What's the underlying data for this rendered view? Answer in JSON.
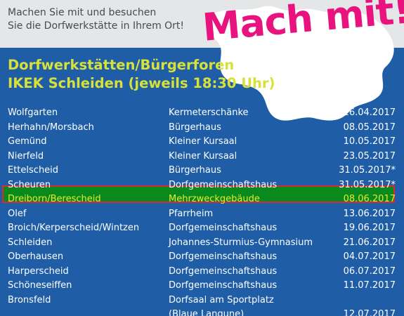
{
  "intro": {
    "line1": "Machen Sie mit und besuchen",
    "line2": "Sie die Dorfwerkstätte in Ihrem Ort!"
  },
  "slogan": "Mach mit!",
  "heading": {
    "line1": "Dorfwerkstätten/Bürgerforen",
    "line2": "IKEK Schleiden (jeweils 18:30 Uhr)"
  },
  "colors": {
    "background": "#1f5ea6",
    "slogan": "#e8137e",
    "heading": "#d7e13a",
    "highlight_fill": "#0a8a1c",
    "highlight_border": "#d62a3a"
  },
  "schedule": [
    {
      "place": "Wolfgarten",
      "venue": "Kermeterschänke",
      "date": "26.04.2017"
    },
    {
      "place": "Herhahn/Morsbach",
      "venue": "Bürgerhaus",
      "date": "08.05.2017"
    },
    {
      "place": "Gemünd",
      "venue": "Kleiner Kursaal",
      "date": "10.05.2017"
    },
    {
      "place": "Nierfeld",
      "venue": "Kleiner Kursaal",
      "date": "23.05.2017"
    },
    {
      "place": "Ettelscheid",
      "venue": "Bürgerhaus",
      "date": "31.05.2017*"
    },
    {
      "place": "Scheuren",
      "venue": "Dorfgemeinschaftshaus",
      "date": "31.05.2017*"
    },
    {
      "place": "Dreiborn/Berescheid",
      "venue": "Mehrzweckgebäude",
      "date": "08.06.2017"
    },
    {
      "place": "Olef",
      "venue": "Pfarrheim",
      "date": "13.06.2017"
    },
    {
      "place": "Broich/Kerperscheid/Wintzen",
      "venue": "Dorfgemeinschaftshaus",
      "date": "19.06.2017"
    },
    {
      "place": "Schleiden",
      "venue": "Johannes-Sturmius-Gymnasium",
      "date": "21.06.2017"
    },
    {
      "place": "Oberhausen",
      "venue": "Dorfgemeinschaftshaus",
      "date": "04.07.2017"
    },
    {
      "place": "Harperscheid",
      "venue": "Dorfgemeinschaftshaus",
      "date": "06.07.2017"
    },
    {
      "place": "Schöneseiffen",
      "venue": "Dorfgemeinschaftshaus",
      "date": "11.07.2017"
    },
    {
      "place": "Bronsfeld",
      "venue": "Dorfsaal am Sportplatz",
      "date": ""
    },
    {
      "place": "",
      "venue": "(Blaue Langune)",
      "date": "12.07.2017"
    }
  ]
}
